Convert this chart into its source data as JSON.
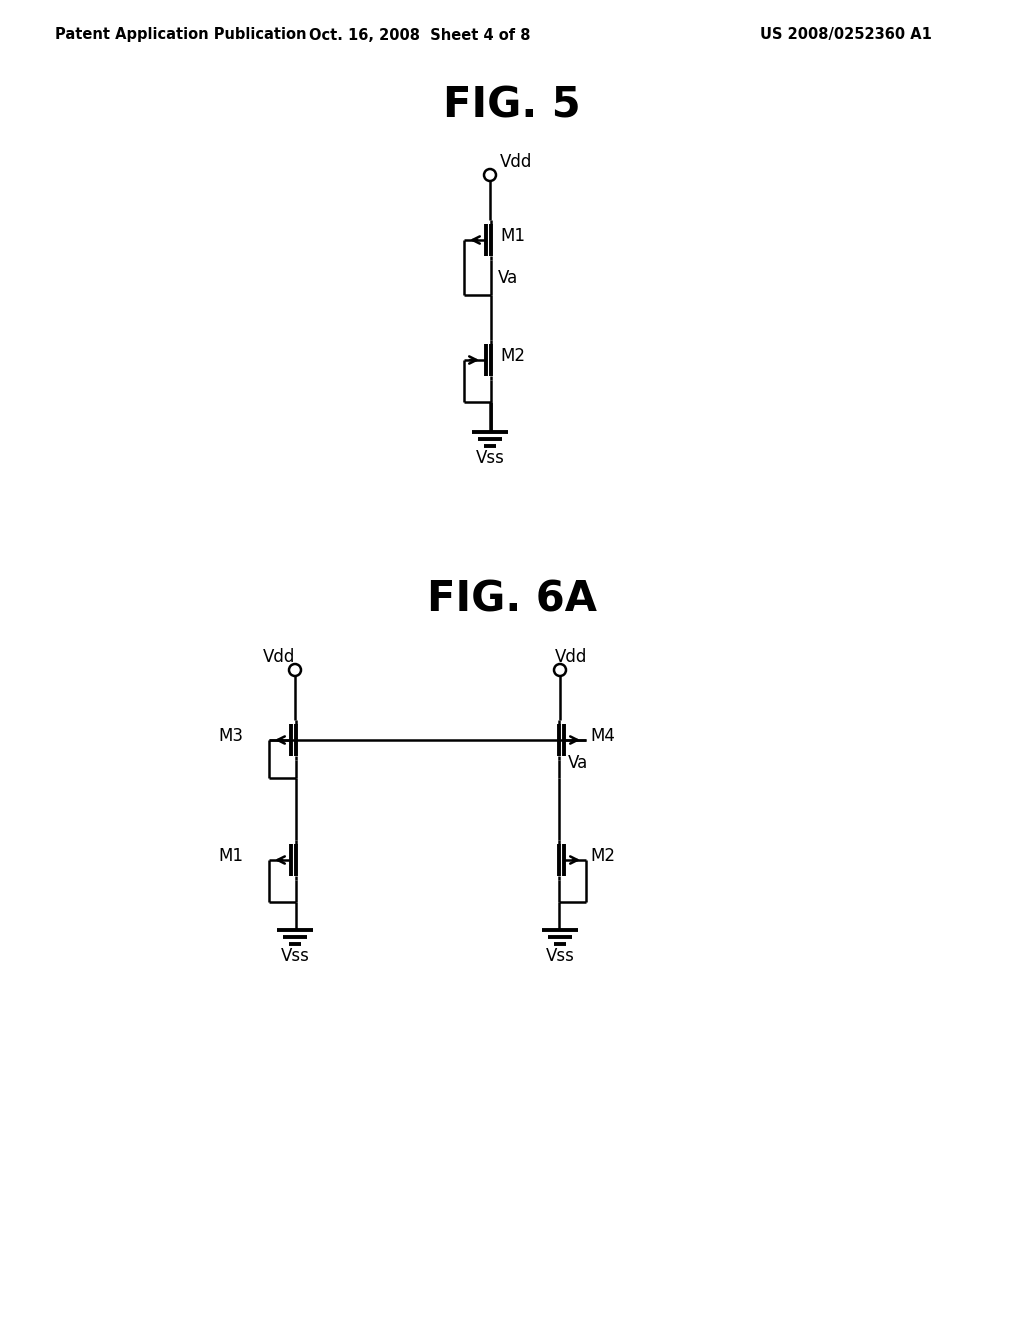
{
  "bg_color": "#ffffff",
  "line_color": "#000000",
  "header_left": "Patent Application Publication",
  "header_mid": "Oct. 16, 2008  Sheet 4 of 8",
  "header_right": "US 2008/0252360 A1",
  "fig5_title": "FIG. 5",
  "fig6a_title": "FIG. 6A",
  "lw": 1.8
}
